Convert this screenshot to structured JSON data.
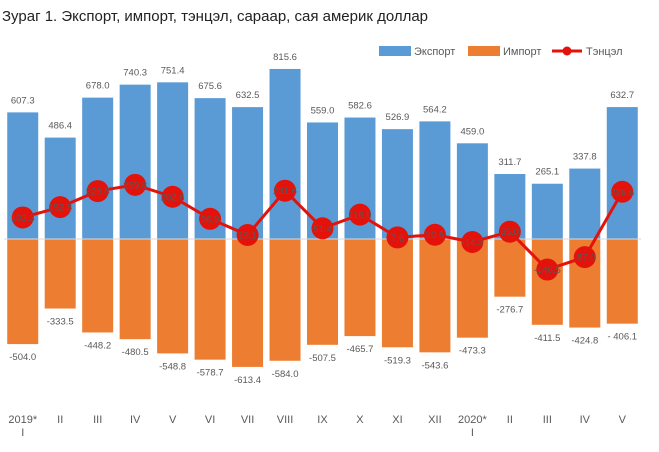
{
  "chart_data": {
    "type": "bar",
    "title": "Зураг 1. Экспорт, импорт, тэнцэл, сараар, сая америк доллар",
    "categories": [
      "2019* I",
      "II",
      "III",
      "IV",
      "V",
      "VI",
      "VII",
      "VIII",
      "IX",
      "X",
      "XI",
      "XII",
      "2020* I",
      "II",
      "III",
      "IV",
      "V"
    ],
    "tick_lines": [
      [
        "2019*",
        "I"
      ],
      [
        "II"
      ],
      [
        "III"
      ],
      [
        "IV"
      ],
      [
        "V"
      ],
      [
        "VI"
      ],
      [
        "VII"
      ],
      [
        "VIII"
      ],
      [
        "IX"
      ],
      [
        "X"
      ],
      [
        "XI"
      ],
      [
        "XII"
      ],
      [
        "2020*",
        "I"
      ],
      [
        "II"
      ],
      [
        "III"
      ],
      [
        "IV"
      ],
      [
        "V"
      ]
    ],
    "series": [
      {
        "name": "Экспорт",
        "kind": "bar",
        "color": "#5B9BD5",
        "values": [
          607.3,
          486.4,
          678.0,
          740.3,
          751.4,
          675.6,
          632.5,
          815.6,
          559.0,
          582.6,
          526.9,
          564.2,
          459.0,
          311.7,
          265.1,
          337.8,
          632.7
        ],
        "labels": [
          "607.3",
          "486.4",
          "678.0",
          "740.3",
          "751.4",
          "675.6",
          "632.5",
          "815.6",
          "559.0",
          "582.6",
          "526.9",
          "564.2",
          "459.0",
          "311.7",
          "265.1",
          "337.8",
          "632.7"
        ]
      },
      {
        "name": "Импорт",
        "kind": "bar",
        "color": "#ED7D31",
        "values": [
          -504.0,
          -333.5,
          -448.2,
          -480.5,
          -548.8,
          -578.7,
          -613.4,
          -584.0,
          -507.5,
          -465.7,
          -519.3,
          -543.6,
          -473.3,
          -276.7,
          -411.5,
          -424.8,
          -406.1
        ],
        "labels": [
          "-504.0",
          "-333.5",
          "-448.2",
          "-480.5",
          "-548.8",
          "-578.7",
          "-613.4",
          "-584.0",
          "-507.5",
          "-465.7",
          "-519.3",
          "-543.6",
          "-473.3",
          "-276.7",
          "-411.5",
          "-424.8",
          "- 406.1"
        ]
      },
      {
        "name": "Тэнцэл",
        "kind": "line",
        "color": "#E3120B",
        "values": [
          103.3,
          152.8,
          229.8,
          259.8,
          202.6,
          96.9,
          19.1,
          231.6,
          51.4,
          116.9,
          7.6,
          20.5,
          -14.3,
          35.0,
          -146.5,
          -87.0,
          226.6
        ],
        "labels": [
          "103.3",
          "152.8",
          "229.8",
          "259.8",
          "202.6",
          "96.9",
          "19.1",
          "231.6",
          "51.4",
          "116.9",
          "7.6",
          "20.5",
          "-14.3",
          "35.0",
          "-146.5",
          "-87.0",
          "226.6"
        ]
      }
    ],
    "legend_position": "top-right",
    "grid": false,
    "ylim": [
      -700,
      900
    ],
    "xlabel": "",
    "ylabel": ""
  }
}
